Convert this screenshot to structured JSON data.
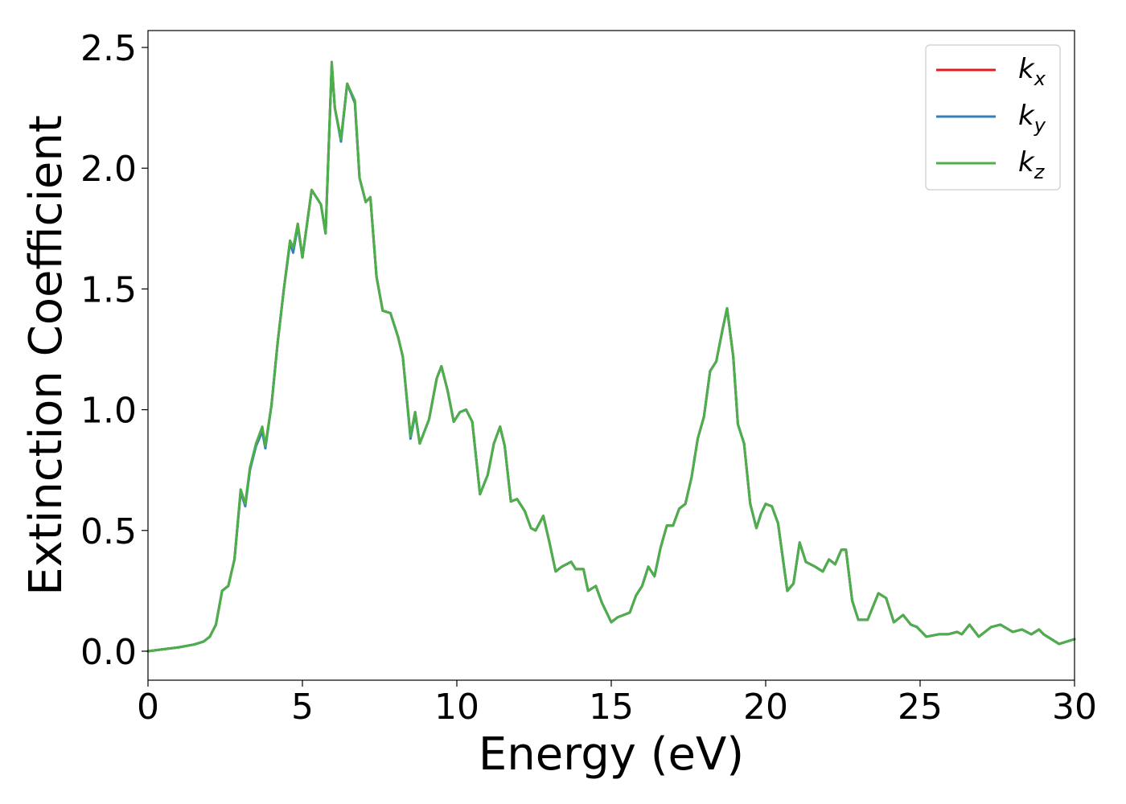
{
  "chart_data": {
    "type": "line",
    "title": "",
    "xlabel": "Energy (eV)",
    "ylabel": "Extinction Coefficient",
    "xlim": [
      0,
      30
    ],
    "ylim": [
      -0.12,
      2.57
    ],
    "xticks": [
      0,
      5,
      10,
      15,
      20,
      25,
      30
    ],
    "xtick_labels": [
      "0",
      "5",
      "10",
      "15",
      "20",
      "25",
      "30"
    ],
    "yticks": [
      0.0,
      0.5,
      1.0,
      1.5,
      2.0,
      2.5
    ],
    "ytick_labels": [
      "0.0",
      "0.5",
      "1.0",
      "1.5",
      "2.0",
      "2.5"
    ],
    "grid": false,
    "legend_position": "top-right",
    "x": [
      0,
      0.5,
      1.0,
      1.5,
      1.8,
      2.0,
      2.2,
      2.4,
      2.6,
      2.8,
      3.0,
      3.15,
      3.3,
      3.5,
      3.7,
      3.8,
      4.0,
      4.2,
      4.4,
      4.6,
      4.7,
      4.85,
      5.0,
      5.3,
      5.6,
      5.75,
      5.95,
      6.05,
      6.25,
      6.45,
      6.7,
      6.85,
      7.05,
      7.2,
      7.4,
      7.6,
      7.85,
      8.1,
      8.25,
      8.5,
      8.65,
      8.8,
      9.1,
      9.35,
      9.5,
      9.7,
      9.9,
      10.1,
      10.3,
      10.5,
      10.75,
      11.0,
      11.2,
      11.4,
      11.55,
      11.75,
      11.95,
      12.2,
      12.4,
      12.55,
      12.8,
      13.0,
      13.2,
      13.4,
      13.7,
      13.85,
      14.1,
      14.25,
      14.5,
      14.7,
      15.0,
      15.2,
      15.6,
      15.8,
      16.0,
      16.2,
      16.4,
      16.6,
      16.8,
      17.0,
      17.2,
      17.4,
      17.6,
      17.8,
      18.0,
      18.2,
      18.4,
      18.6,
      18.75,
      18.95,
      19.1,
      19.3,
      19.5,
      19.7,
      19.85,
      20.0,
      20.2,
      20.4,
      20.7,
      20.9,
      21.1,
      21.3,
      21.6,
      21.85,
      22.05,
      22.25,
      22.45,
      22.6,
      22.8,
      23.0,
      23.3,
      23.65,
      23.9,
      24.15,
      24.45,
      24.7,
      24.9,
      25.2,
      25.6,
      25.9,
      26.2,
      26.35,
      26.6,
      26.9,
      27.3,
      27.6,
      28.0,
      28.3,
      28.6,
      28.85,
      29.0,
      29.5,
      30.0
    ],
    "series": [
      {
        "name": "k_x",
        "color": "#e41a1c",
        "y": [
          0.0,
          0.008,
          0.016,
          0.028,
          0.04,
          0.06,
          0.11,
          0.25,
          0.27,
          0.38,
          0.66,
          0.61,
          0.75,
          0.86,
          0.92,
          0.85,
          1.02,
          1.28,
          1.5,
          1.7,
          1.66,
          1.77,
          1.63,
          1.91,
          1.85,
          1.73,
          2.43,
          2.25,
          2.12,
          2.35,
          2.27,
          1.96,
          1.86,
          1.88,
          1.55,
          1.41,
          1.4,
          1.3,
          1.22,
          0.89,
          0.99,
          0.86,
          0.96,
          1.13,
          1.18,
          1.08,
          0.95,
          0.99,
          1.0,
          0.95,
          0.65,
          0.73,
          0.86,
          0.93,
          0.85,
          0.62,
          0.63,
          0.58,
          0.51,
          0.5,
          0.56,
          0.45,
          0.33,
          0.35,
          0.37,
          0.34,
          0.34,
          0.25,
          0.27,
          0.2,
          0.12,
          0.14,
          0.16,
          0.23,
          0.27,
          0.35,
          0.31,
          0.43,
          0.52,
          0.52,
          0.59,
          0.61,
          0.72,
          0.88,
          0.97,
          1.16,
          1.2,
          1.33,
          1.42,
          1.22,
          0.94,
          0.86,
          0.61,
          0.51,
          0.57,
          0.61,
          0.6,
          0.53,
          0.25,
          0.28,
          0.45,
          0.37,
          0.35,
          0.33,
          0.38,
          0.36,
          0.42,
          0.42,
          0.21,
          0.13,
          0.13,
          0.24,
          0.22,
          0.12,
          0.15,
          0.11,
          0.1,
          0.06,
          0.07,
          0.07,
          0.08,
          0.07,
          0.11,
          0.06,
          0.1,
          0.11,
          0.08,
          0.09,
          0.07,
          0.09,
          0.07,
          0.03,
          0.05
        ]
      },
      {
        "name": "k_y",
        "color": "#377eb8",
        "y": [
          0.0,
          0.008,
          0.016,
          0.028,
          0.04,
          0.06,
          0.11,
          0.25,
          0.27,
          0.38,
          0.66,
          0.6,
          0.75,
          0.85,
          0.91,
          0.84,
          1.02,
          1.28,
          1.5,
          1.69,
          1.65,
          1.76,
          1.63,
          1.91,
          1.85,
          1.73,
          2.43,
          2.25,
          2.11,
          2.35,
          2.27,
          1.96,
          1.86,
          1.88,
          1.55,
          1.41,
          1.4,
          1.3,
          1.22,
          0.88,
          0.98,
          0.86,
          0.96,
          1.13,
          1.18,
          1.08,
          0.95,
          0.99,
          1.0,
          0.95,
          0.65,
          0.73,
          0.86,
          0.93,
          0.85,
          0.62,
          0.63,
          0.58,
          0.51,
          0.5,
          0.56,
          0.45,
          0.33,
          0.35,
          0.37,
          0.34,
          0.34,
          0.25,
          0.27,
          0.2,
          0.12,
          0.14,
          0.16,
          0.23,
          0.27,
          0.35,
          0.31,
          0.43,
          0.52,
          0.52,
          0.59,
          0.61,
          0.72,
          0.88,
          0.97,
          1.16,
          1.2,
          1.33,
          1.42,
          1.22,
          0.94,
          0.86,
          0.61,
          0.51,
          0.57,
          0.61,
          0.6,
          0.53,
          0.25,
          0.28,
          0.45,
          0.37,
          0.35,
          0.33,
          0.38,
          0.36,
          0.42,
          0.42,
          0.21,
          0.13,
          0.13,
          0.24,
          0.22,
          0.12,
          0.15,
          0.11,
          0.1,
          0.06,
          0.07,
          0.07,
          0.08,
          0.07,
          0.11,
          0.06,
          0.1,
          0.11,
          0.08,
          0.09,
          0.07,
          0.09,
          0.07,
          0.03,
          0.05
        ]
      },
      {
        "name": "k_z",
        "color": "#4daf4a",
        "y": [
          0.0,
          0.008,
          0.016,
          0.028,
          0.04,
          0.06,
          0.11,
          0.25,
          0.27,
          0.38,
          0.67,
          0.61,
          0.76,
          0.86,
          0.93,
          0.85,
          1.02,
          1.28,
          1.5,
          1.7,
          1.67,
          1.77,
          1.63,
          1.91,
          1.85,
          1.73,
          2.44,
          2.25,
          2.12,
          2.35,
          2.28,
          1.96,
          1.86,
          1.88,
          1.55,
          1.41,
          1.4,
          1.3,
          1.22,
          0.89,
          0.99,
          0.86,
          0.96,
          1.13,
          1.18,
          1.08,
          0.95,
          0.99,
          1.0,
          0.95,
          0.65,
          0.73,
          0.86,
          0.93,
          0.85,
          0.62,
          0.63,
          0.58,
          0.51,
          0.5,
          0.56,
          0.45,
          0.33,
          0.35,
          0.37,
          0.34,
          0.34,
          0.25,
          0.27,
          0.2,
          0.12,
          0.14,
          0.16,
          0.23,
          0.27,
          0.35,
          0.31,
          0.43,
          0.52,
          0.52,
          0.59,
          0.61,
          0.72,
          0.88,
          0.97,
          1.16,
          1.2,
          1.33,
          1.42,
          1.22,
          0.94,
          0.86,
          0.61,
          0.51,
          0.57,
          0.61,
          0.6,
          0.53,
          0.25,
          0.28,
          0.45,
          0.37,
          0.35,
          0.33,
          0.38,
          0.36,
          0.42,
          0.42,
          0.21,
          0.13,
          0.13,
          0.24,
          0.22,
          0.12,
          0.15,
          0.11,
          0.1,
          0.06,
          0.07,
          0.07,
          0.08,
          0.07,
          0.11,
          0.06,
          0.1,
          0.11,
          0.08,
          0.09,
          0.07,
          0.09,
          0.07,
          0.03,
          0.05
        ]
      }
    ],
    "legend": [
      {
        "base": "k",
        "sub": "x",
        "color": "#e41a1c"
      },
      {
        "base": "k",
        "sub": "y",
        "color": "#377eb8"
      },
      {
        "base": "k",
        "sub": "z",
        "color": "#4daf4a"
      }
    ]
  }
}
